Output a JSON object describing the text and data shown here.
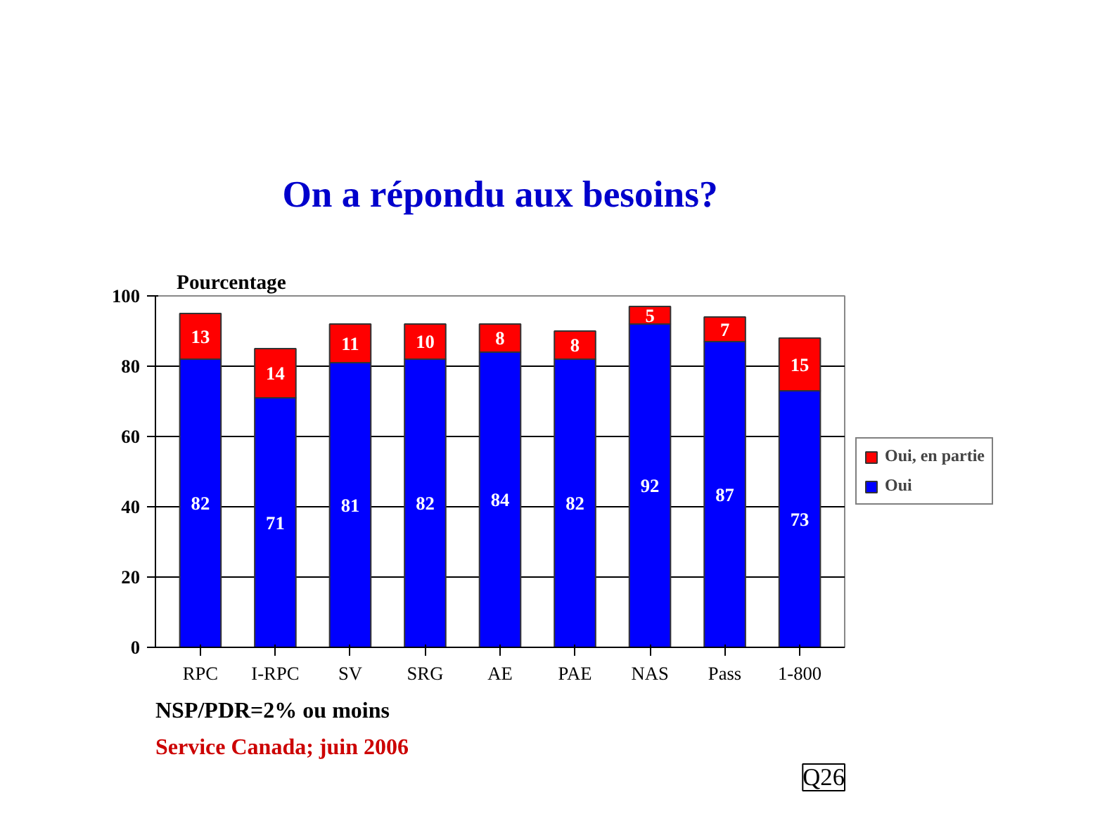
{
  "chart_data": {
    "type": "bar",
    "title": "On a répondu aux besoins?",
    "ylabel": "Pourcentage",
    "categories": [
      "RPC",
      "I-RPC",
      "SV",
      "SRG",
      "AE",
      "PAE",
      "NAS",
      "Pass",
      "1-800"
    ],
    "series": [
      {
        "name": "Oui",
        "color": "#0000ff",
        "values": [
          82,
          71,
          81,
          82,
          84,
          82,
          92,
          87,
          73
        ]
      },
      {
        "name": "Oui, en partie",
        "color": "#ff0000",
        "values": [
          13,
          14,
          11,
          10,
          8,
          8,
          5,
          7,
          15
        ]
      }
    ],
    "stacked": true,
    "data_labels": true,
    "ylim": [
      0,
      100
    ],
    "yticks": [
      0,
      20,
      40,
      60,
      80,
      100
    ],
    "grid": "y",
    "legend": "right",
    "annotations": [
      "NSP/PDR=2% ou moins",
      "Service Canada; juin 2006",
      "Q26"
    ]
  }
}
